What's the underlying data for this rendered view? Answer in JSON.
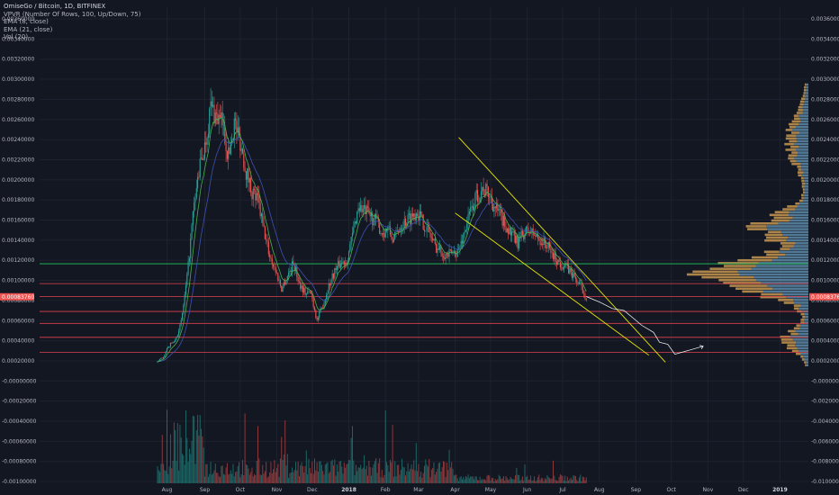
{
  "legend": {
    "symbol": "OmiseGo / Bitcoin, 1D, BITFINEX",
    "studies": [
      "VPVR (Number Of Rows, 100, Up/Down, 75)",
      "EMA (8, close)",
      "EMA (21, close)",
      "Vol (20)"
    ]
  },
  "colors": {
    "background": "#131722",
    "grid": "#1e2230",
    "up": "#26a69a",
    "down": "#ef5350",
    "ema_fast": "#4caf50",
    "ema_slow": "#3f51b5",
    "channel": "#e6e600",
    "support_green": "#22c55e",
    "support_red": "#e0424f",
    "vp_up": "#5d8aa8",
    "vp_down": "#c8964f",
    "price_tag": "#ef5350"
  },
  "chart_data": {
    "type": "candlestick",
    "current_price_label": "0.00083760",
    "y_ticks_left": [
      "0.00360000",
      "0.00340000",
      "0.00320000",
      "0.00300000",
      "0.00280000",
      "0.00260000",
      "0.00240000",
      "0.00220000",
      "0.00200000",
      "0.00180000",
      "0.00160000",
      "0.00140000",
      "0.00120000",
      "0.00100000",
      "0.00080000",
      "0.00060000",
      "0.00040000",
      "0.00020000",
      "-0.00000000",
      "-0.00020000",
      "-0.00040000",
      "-0.00060000",
      "-0.00080000",
      "-0.00100000"
    ],
    "y_ticks_right": [
      "0.00360000",
      "0.00340000",
      "0.00320000",
      "0.00300000",
      "0.00280000",
      "0.00260000",
      "0.00240000",
      "0.00220000",
      "0.00200000",
      "0.00180000",
      "0.00160000",
      "0.00140000",
      "0.00120000",
      "0.00100000",
      "0.00080000",
      "0.00060000",
      "0.00040000",
      "0.00020000",
      "-0.00000000",
      "-0.00200000",
      "-0.00400000",
      "-0.00600000",
      "-0.00800000",
      "-0.01000000"
    ],
    "x_ticks": [
      {
        "label": "Aug",
        "day": 8
      },
      {
        "label": "Sep",
        "day": 40
      },
      {
        "label": "Oct",
        "day": 70
      },
      {
        "label": "Nov",
        "day": 101
      },
      {
        "label": "Dec",
        "day": 131
      },
      {
        "label": "2018",
        "day": 162,
        "bold": true
      },
      {
        "label": "Feb",
        "day": 193
      },
      {
        "label": "Mar",
        "day": 221
      },
      {
        "label": "Apr",
        "day": 252
      },
      {
        "label": "May",
        "day": 282
      },
      {
        "label": "Jun",
        "day": 313
      },
      {
        "label": "Jul",
        "day": 343
      },
      {
        "label": "Aug",
        "day": 374
      },
      {
        "label": "Sep",
        "day": 405
      },
      {
        "label": "Oct",
        "day": 435
      },
      {
        "label": "Nov",
        "day": 466
      },
      {
        "label": "Dec",
        "day": 496
      },
      {
        "label": "2019",
        "day": 527,
        "bold": true
      }
    ],
    "price_path": [
      [
        0,
        0.00018
      ],
      [
        5,
        0.00024
      ],
      [
        10,
        0.00035
      ],
      [
        15,
        0.0004
      ],
      [
        20,
        0.00058
      ],
      [
        25,
        0.00102
      ],
      [
        30,
        0.00165
      ],
      [
        35,
        0.0021
      ],
      [
        40,
        0.00235
      ],
      [
        45,
        0.00275
      ],
      [
        50,
        0.00265
      ],
      [
        55,
        0.00258
      ],
      [
        60,
        0.00225
      ],
      [
        65,
        0.0026
      ],
      [
        70,
        0.0024
      ],
      [
        75,
        0.0021
      ],
      [
        80,
        0.0019
      ],
      [
        85,
        0.0018
      ],
      [
        90,
        0.0015
      ],
      [
        95,
        0.00125
      ],
      [
        100,
        0.0011
      ],
      [
        105,
        0.00092
      ],
      [
        110,
        0.00105
      ],
      [
        115,
        0.00118
      ],
      [
        120,
        0.00098
      ],
      [
        125,
        0.00088
      ],
      [
        130,
        0.00087
      ],
      [
        135,
        0.0006
      ],
      [
        140,
        0.00075
      ],
      [
        145,
        0.00095
      ],
      [
        150,
        0.0011
      ],
      [
        155,
        0.00118
      ],
      [
        160,
        0.0012
      ],
      [
        165,
        0.00145
      ],
      [
        170,
        0.00175
      ],
      [
        175,
        0.0017
      ],
      [
        180,
        0.00165
      ],
      [
        185,
        0.0016
      ],
      [
        190,
        0.00148
      ],
      [
        195,
        0.00152
      ],
      [
        200,
        0.0014
      ],
      [
        205,
        0.00155
      ],
      [
        210,
        0.0016
      ],
      [
        215,
        0.00165
      ],
      [
        220,
        0.0017
      ],
      [
        225,
        0.00158
      ],
      [
        230,
        0.00148
      ],
      [
        235,
        0.00135
      ],
      [
        240,
        0.0013
      ],
      [
        245,
        0.00125
      ],
      [
        250,
        0.00128
      ],
      [
        255,
        0.0013
      ],
      [
        260,
        0.0015
      ],
      [
        265,
        0.0017
      ],
      [
        270,
        0.00185
      ],
      [
        275,
        0.00192
      ],
      [
        280,
        0.00188
      ],
      [
        285,
        0.00175
      ],
      [
        290,
        0.00165
      ],
      [
        295,
        0.00155
      ],
      [
        300,
        0.00145
      ],
      [
        305,
        0.00138
      ],
      [
        310,
        0.00148
      ],
      [
        315,
        0.0015
      ],
      [
        320,
        0.00145
      ],
      [
        325,
        0.0014
      ],
      [
        330,
        0.00135
      ],
      [
        335,
        0.00125
      ],
      [
        340,
        0.00118
      ],
      [
        345,
        0.00115
      ],
      [
        350,
        0.00108
      ],
      [
        355,
        0.001
      ],
      [
        360,
        0.0009
      ],
      [
        363,
        0.00084
      ]
    ],
    "projection": [
      [
        363,
        0.00084
      ],
      [
        375,
        0.00078
      ],
      [
        385,
        0.00072
      ],
      [
        395,
        0.0007
      ],
      [
        405,
        0.0006
      ],
      [
        410,
        0.00055
      ],
      [
        420,
        0.00048
      ],
      [
        425,
        0.00038
      ],
      [
        432,
        0.00036
      ],
      [
        438,
        0.00026
      ],
      [
        450,
        0.0003
      ],
      [
        462,
        0.00034
      ]
    ],
    "channel_upper": [
      [
        255,
        0.00244
      ],
      [
        430,
        0.00018
      ]
    ],
    "channel_lower": [
      [
        252,
        0.00168
      ],
      [
        416,
        0.00025
      ]
    ],
    "horizontal_levels": [
      {
        "value": 0.00117,
        "color": "green"
      },
      {
        "value": 0.00097,
        "color": "red"
      },
      {
        "value": 0.00084,
        "color": "red"
      },
      {
        "value": 0.00069,
        "color": "red"
      },
      {
        "value": 0.00057,
        "color": "red"
      },
      {
        "value": 0.00043,
        "color": "red"
      },
      {
        "value": 0.00028,
        "color": "red"
      }
    ],
    "y_range": [
      -0.00102,
      0.00375
    ],
    "x_range_days": [
      0,
      530
    ]
  }
}
